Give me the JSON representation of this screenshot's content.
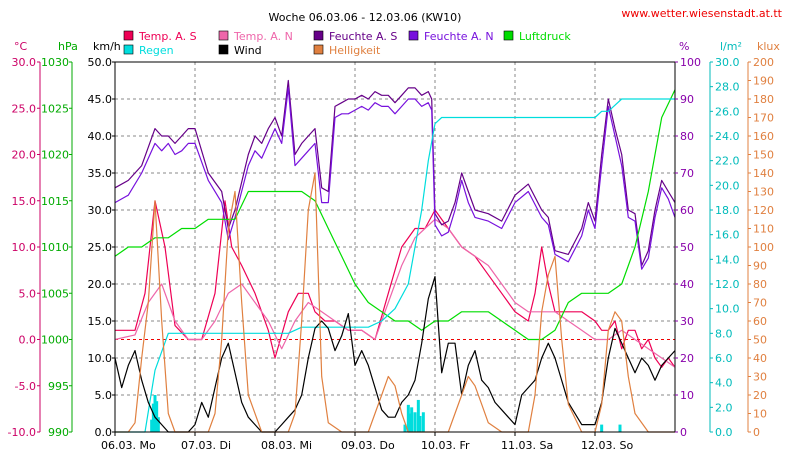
{
  "chart_data": {
    "type": "line",
    "title": "Woche 06.03.06 - 12.03.06 (KW10)",
    "source": "www.wetter.wiesenstadt.at.tt",
    "x_range_hours": [
      0,
      168
    ],
    "x_ticks": [
      {
        "label": "06.03. Mo",
        "hour": 0
      },
      {
        "label": "07.03. Di",
        "hour": 24
      },
      {
        "label": "08.03. Mi",
        "hour": 48
      },
      {
        "label": "09.03. Do",
        "hour": 72
      },
      {
        "label": "10.03. Fr",
        "hour": 96
      },
      {
        "label": "11.03. Sa",
        "hour": 120
      },
      {
        "label": "12.03. So",
        "hour": 144
      }
    ],
    "axes": [
      {
        "id": "temp",
        "unit": "°C",
        "color": "#cc0066",
        "min": -10,
        "max": 30,
        "ticks": [
          "-10.0",
          "-5.0",
          "0.0",
          "5.0",
          "10.0",
          "15.0",
          "20.0",
          "25.0",
          "30.0"
        ]
      },
      {
        "id": "press",
        "unit": "hPa",
        "color": "#00aa00",
        "min": 990,
        "max": 1030,
        "ticks": [
          "990",
          "995",
          "1000",
          "1005",
          "1010",
          "1015",
          "1020",
          "1025",
          "1030"
        ]
      },
      {
        "id": "wind",
        "unit": "km/h",
        "color": "#000000",
        "min": 0,
        "max": 50,
        "ticks": [
          "0.0",
          "5.0",
          "10.0",
          "15.0",
          "20.0",
          "25.0",
          "30.0",
          "35.0",
          "40.0",
          "45.0",
          "50.0"
        ]
      },
      {
        "id": "hum",
        "unit": "%",
        "color": "#8800aa",
        "min": 0,
        "max": 100,
        "ticks": [
          "0",
          "10",
          "20",
          "30",
          "40",
          "50",
          "60",
          "70",
          "80",
          "90",
          "100"
        ]
      },
      {
        "id": "rain",
        "unit": "l/m²",
        "color": "#00bbbb",
        "min": 0,
        "max": 30,
        "ticks": [
          "0.0",
          "2.0",
          "4.0",
          "6.0",
          "8.0",
          "10.0",
          "12.0",
          "14.0",
          "16.0",
          "18.0",
          "20.0",
          "22.0",
          "24.0",
          "26.0",
          "28.0",
          "30.0"
        ]
      },
      {
        "id": "lux",
        "unit": "klux",
        "color": "#e08040",
        "min": 0,
        "max": 200,
        "ticks": [
          "0",
          "10",
          "20",
          "30",
          "40",
          "50",
          "60",
          "70",
          "80",
          "90",
          "100",
          "110",
          "120",
          "130",
          "140",
          "150",
          "160",
          "170",
          "180",
          "190",
          "200"
        ]
      }
    ],
    "series": [
      {
        "name": "Temp. A. S",
        "axis": "temp",
        "color": "#ee0055",
        "x": [
          0,
          6,
          9,
          12,
          15,
          18,
          22,
          26,
          30,
          33,
          35,
          38,
          42,
          46,
          48,
          52,
          55,
          58,
          60,
          63,
          66,
          70,
          74,
          78,
          82,
          86,
          90,
          93,
          96,
          100,
          104,
          108,
          112,
          116,
          120,
          124,
          126,
          128,
          130,
          132,
          136,
          140,
          144,
          146,
          148,
          150,
          152,
          154,
          156,
          158,
          160,
          162,
          164,
          166,
          168
        ],
        "y": [
          1,
          1,
          5,
          15,
          10,
          1.5,
          0,
          0,
          5,
          15,
          10,
          8,
          5,
          1,
          -2,
          3,
          5,
          5,
          3,
          2,
          2,
          1,
          1,
          0,
          5,
          10,
          12,
          12,
          14,
          12,
          10,
          9,
          7,
          5,
          3,
          2,
          5,
          10,
          6,
          3,
          3,
          3,
          2,
          1,
          1,
          2,
          -1,
          1,
          1,
          -1,
          0,
          -2,
          -3,
          -2,
          -3
        ]
      },
      {
        "name": "Temp. A. N",
        "axis": "temp",
        "color": "#ee66aa",
        "x": [
          0,
          6,
          10,
          14,
          18,
          22,
          26,
          30,
          34,
          38,
          42,
          46,
          50,
          54,
          58,
          62,
          66,
          70,
          74,
          78,
          82,
          86,
          90,
          93,
          96,
          100,
          104,
          108,
          112,
          116,
          120,
          124,
          128,
          132,
          136,
          140,
          144,
          148,
          152,
          156,
          160,
          164,
          168
        ],
        "y": [
          0,
          0.5,
          4,
          6,
          2,
          0,
          0,
          2,
          5,
          6,
          4,
          2,
          -1,
          2,
          4,
          3,
          2,
          1,
          1,
          0,
          4,
          8,
          11,
          12,
          13,
          12,
          10,
          9,
          8,
          6,
          4,
          3,
          3,
          3,
          2,
          1,
          0,
          0,
          1,
          0,
          -1,
          -2,
          -3
        ]
      },
      {
        "name": "Feuchte A. S",
        "axis": "hum",
        "color": "#660088",
        "x": [
          0,
          4,
          8,
          12,
          14,
          16,
          18,
          20,
          22,
          24,
          28,
          32,
          34,
          36,
          40,
          42,
          44,
          46,
          48,
          50,
          52,
          54,
          56,
          58,
          60,
          62,
          64,
          66,
          68,
          70,
          72,
          74,
          76,
          78,
          80,
          82,
          84,
          86,
          88,
          90,
          92,
          94,
          95,
          96,
          98,
          100,
          102,
          104,
          106,
          108,
          112,
          116,
          120,
          124,
          128,
          130,
          132,
          136,
          140,
          142,
          144,
          146,
          148,
          150,
          152,
          154,
          156,
          158,
          160,
          162,
          164,
          166,
          168
        ],
        "y": [
          66,
          68,
          72,
          82,
          80,
          80,
          78,
          80,
          82,
          82,
          70,
          65,
          55,
          60,
          75,
          80,
          78,
          82,
          85,
          80,
          95,
          75,
          78,
          80,
          82,
          66,
          65,
          88,
          89,
          90,
          90,
          91,
          90,
          92,
          91,
          91,
          89,
          91,
          93,
          93,
          91,
          92,
          90,
          59,
          56,
          57,
          62,
          70,
          65,
          60,
          59,
          57,
          64,
          67,
          60,
          58,
          49,
          48,
          55,
          62,
          57,
          75,
          90,
          82,
          75,
          60,
          59,
          45,
          49,
          60,
          68,
          65,
          62
        ]
      },
      {
        "name": "Feuchte A. N",
        "axis": "hum",
        "color": "#7711dd",
        "x": [
          0,
          4,
          8,
          12,
          14,
          16,
          18,
          20,
          22,
          24,
          28,
          32,
          34,
          36,
          40,
          42,
          44,
          46,
          48,
          50,
          52,
          54,
          56,
          58,
          60,
          62,
          64,
          66,
          68,
          70,
          72,
          74,
          76,
          78,
          80,
          82,
          84,
          86,
          88,
          90,
          92,
          94,
          95,
          96,
          98,
          100,
          102,
          104,
          106,
          108,
          112,
          116,
          120,
          124,
          128,
          130,
          132,
          136,
          140,
          142,
          144,
          146,
          148,
          150,
          152,
          154,
          156,
          158,
          160,
          162,
          164,
          166,
          168
        ],
        "y": [
          62,
          64,
          70,
          78,
          76,
          78,
          75,
          76,
          78,
          78,
          68,
          62,
          52,
          58,
          72,
          76,
          74,
          78,
          82,
          78,
          93,
          72,
          74,
          76,
          78,
          62,
          62,
          85,
          86,
          86,
          87,
          88,
          87,
          89,
          88,
          88,
          86,
          88,
          90,
          90,
          88,
          89,
          87,
          56,
          53,
          54,
          60,
          68,
          62,
          58,
          57,
          55,
          62,
          65,
          58,
          56,
          48,
          46,
          53,
          60,
          55,
          72,
          88,
          80,
          72,
          58,
          57,
          44,
          47,
          58,
          66,
          63,
          58
        ]
      },
      {
        "name": "Luftdruck",
        "axis": "press",
        "color": "#00dd00",
        "x": [
          0,
          4,
          8,
          12,
          16,
          20,
          24,
          28,
          32,
          36,
          40,
          44,
          48,
          52,
          56,
          60,
          64,
          68,
          72,
          76,
          80,
          84,
          88,
          92,
          96,
          100,
          104,
          108,
          112,
          116,
          120,
          124,
          128,
          132,
          136,
          140,
          144,
          148,
          152,
          156,
          160,
          164,
          168
        ],
        "y": [
          1009,
          1010,
          1010,
          1011,
          1011,
          1012,
          1012,
          1013,
          1013,
          1013,
          1016,
          1016,
          1016,
          1016,
          1016,
          1015,
          1012,
          1009,
          1006,
          1004,
          1003,
          1002,
          1002,
          1001,
          1002,
          1002,
          1003,
          1003,
          1003,
          1002,
          1001,
          1000,
          1000,
          1001,
          1004,
          1005,
          1005,
          1005,
          1006,
          1010,
          1016,
          1024,
          1027
        ]
      },
      {
        "name": "Regen",
        "axis": "rain",
        "color": "#00dddd",
        "x": [
          0,
          6,
          9,
          12,
          16,
          24,
          36,
          44,
          48,
          52,
          56,
          60,
          64,
          68,
          72,
          76,
          80,
          84,
          88,
          92,
          94,
          96,
          98,
          100,
          102,
          104,
          108,
          112,
          116,
          120,
          124,
          128,
          132,
          136,
          140,
          144,
          146,
          148,
          150,
          152,
          154,
          156,
          158,
          160,
          164,
          168
        ],
        "y": [
          0,
          0,
          0,
          5,
          8,
          8,
          8,
          8,
          8,
          8,
          8.5,
          8.5,
          8.5,
          8.5,
          8.5,
          8.5,
          9,
          10,
          12,
          18,
          22,
          25,
          25.5,
          25.5,
          25.5,
          25.5,
          25.5,
          25.5,
          25.5,
          25.5,
          25.5,
          25.5,
          25.5,
          25.5,
          25.5,
          25.5,
          26,
          26,
          26.5,
          27,
          27,
          27,
          27,
          27,
          27,
          27
        ]
      },
      {
        "name": "Wind",
        "axis": "wind",
        "color": "#000000",
        "x": [
          0,
          2,
          4,
          6,
          8,
          10,
          12,
          14,
          16,
          18,
          20,
          22,
          24,
          26,
          28,
          30,
          32,
          34,
          36,
          38,
          40,
          42,
          44,
          46,
          48,
          50,
          52,
          54,
          56,
          58,
          60,
          62,
          64,
          66,
          68,
          70,
          72,
          74,
          76,
          78,
          80,
          82,
          84,
          86,
          88,
          90,
          92,
          94,
          96,
          98,
          100,
          102,
          104,
          106,
          108,
          110,
          112,
          114,
          116,
          118,
          120,
          122,
          124,
          126,
          128,
          130,
          132,
          136,
          140,
          144,
          146,
          148,
          150,
          152,
          154,
          156,
          158,
          160,
          162,
          164,
          166,
          168
        ],
        "y": [
          10,
          6,
          9,
          11,
          7,
          4,
          2,
          1,
          0,
          0,
          0,
          0,
          1,
          4,
          2,
          6,
          10,
          12,
          8,
          4,
          2,
          1,
          0,
          0,
          0,
          1,
          2,
          3,
          5,
          10,
          14,
          15,
          14,
          11,
          13,
          16,
          9,
          11,
          9,
          6,
          3,
          2,
          2,
          4,
          5,
          7,
          12,
          18,
          21,
          8,
          12,
          12,
          5,
          9,
          11,
          7,
          6,
          4,
          3,
          2,
          1,
          5,
          6,
          7,
          10,
          12,
          10,
          4,
          1,
          1,
          4,
          10,
          14,
          12,
          10,
          8,
          10,
          9,
          7,
          9,
          10,
          11
        ]
      },
      {
        "name": "Helligkeit",
        "axis": "lux",
        "color": "#e08040",
        "x": [
          0,
          4,
          6,
          8,
          10,
          12,
          14,
          16,
          18,
          20,
          24,
          28,
          30,
          32,
          34,
          36,
          38,
          40,
          44,
          48,
          52,
          54,
          56,
          58,
          60,
          62,
          64,
          68,
          72,
          76,
          78,
          80,
          82,
          84,
          86,
          88,
          92,
          96,
          100,
          102,
          104,
          106,
          108,
          110,
          112,
          116,
          120,
          124,
          126,
          128,
          130,
          132,
          134,
          136,
          140,
          144,
          146,
          148,
          150,
          152,
          154,
          156,
          160,
          164,
          168
        ],
        "y": [
          0,
          0,
          5,
          40,
          70,
          125,
          60,
          10,
          0,
          0,
          0,
          0,
          10,
          50,
          110,
          130,
          70,
          20,
          0,
          0,
          0,
          10,
          60,
          120,
          140,
          30,
          5,
          0,
          0,
          0,
          10,
          20,
          30,
          25,
          10,
          0,
          0,
          0,
          0,
          10,
          20,
          30,
          25,
          15,
          5,
          0,
          0,
          0,
          20,
          65,
          85,
          95,
          50,
          15,
          0,
          0,
          15,
          55,
          65,
          60,
          30,
          10,
          0,
          0,
          0
        ]
      }
    ],
    "rain_bars": [
      {
        "hour": 11.0,
        "value": 1.0
      },
      {
        "hour": 11.5,
        "value": 2.3
      },
      {
        "hour": 12.0,
        "value": 3.0
      },
      {
        "hour": 12.5,
        "value": 2.5
      },
      {
        "hour": 13.0,
        "value": 1.2
      },
      {
        "hour": 87.0,
        "value": 0.6
      },
      {
        "hour": 88.0,
        "value": 2.2
      },
      {
        "hour": 88.5,
        "value": 1.5
      },
      {
        "hour": 89.0,
        "value": 2.0
      },
      {
        "hour": 90.0,
        "value": 1.6
      },
      {
        "hour": 91.0,
        "value": 2.6
      },
      {
        "hour": 91.5,
        "value": 1.3
      },
      {
        "hour": 92.5,
        "value": 1.6
      },
      {
        "hour": 146.0,
        "value": 0.6
      },
      {
        "hour": 151.5,
        "value": 0.6
      }
    ],
    "zero_line": {
      "axis": "temp",
      "value": 0,
      "color": "#ee0000"
    },
    "grid": true
  }
}
